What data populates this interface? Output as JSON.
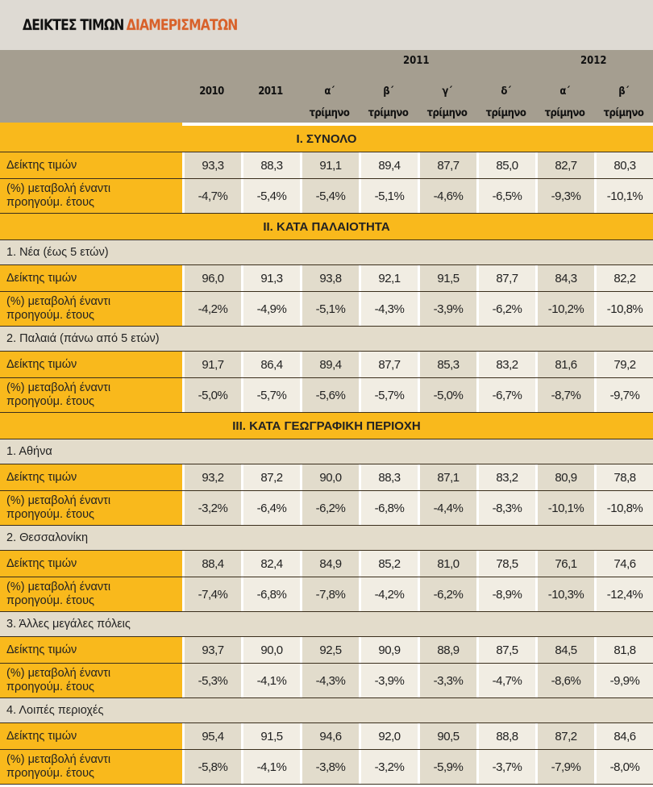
{
  "title": {
    "part1": "ΔΕΙΚΤΕΣ ΤΙΜΩΝ",
    "part2": "ΔΙΑΜΕΡΙΣΜΑΤΩΝ"
  },
  "colors": {
    "accent": "#f9b91c",
    "title_accent": "#d8612a",
    "header_bg": "#a59e90"
  },
  "header": {
    "groups": [
      "2011",
      "2012"
    ],
    "columns": [
      {
        "top": "2010",
        "bottom": ""
      },
      {
        "top": "2011",
        "bottom": ""
      },
      {
        "top": "α΄",
        "bottom": "τρίμηνο"
      },
      {
        "top": "β΄",
        "bottom": "τρίμηνο"
      },
      {
        "top": "γ΄",
        "bottom": "τρίμηνο"
      },
      {
        "top": "δ΄",
        "bottom": "τρίμηνο"
      },
      {
        "top": "α΄",
        "bottom": "τρίμηνο"
      },
      {
        "top": "β΄",
        "bottom": "τρίμηνο"
      }
    ]
  },
  "row_labels": {
    "index": "Δείκτης τιμών",
    "change1": "(%) μεταβολή έναντι",
    "change2": "προηγούμ. έτους"
  },
  "sections": [
    {
      "title": "I. ΣΥΝΟΛΟ",
      "groups": [
        {
          "name": "",
          "index": [
            "93,3",
            "88,3",
            "91,1",
            "89,4",
            "87,7",
            "85,0",
            "82,7",
            "80,3"
          ],
          "change": [
            "-4,7%",
            "-5,4%",
            "-5,4%",
            "-5,1%",
            "-4,6%",
            "-6,5%",
            "-9,3%",
            "-10,1%"
          ]
        }
      ]
    },
    {
      "title": "II. ΚΑΤΑ ΠΑΛΑΙΟΤΗΤΑ",
      "groups": [
        {
          "name": "1.  Νέα (έως 5 ετών)",
          "index": [
            "96,0",
            "91,3",
            "93,8",
            "92,1",
            "91,5",
            "87,7",
            "84,3",
            "82,2"
          ],
          "change": [
            "-4,2%",
            "-4,9%",
            "-5,1%",
            "-4,3%",
            "-3,9%",
            "-6,2%",
            "-10,2%",
            "-10,8%"
          ]
        },
        {
          "name": "2.  Παλαιά (πάνω από 5 ετών)",
          "index": [
            "91,7",
            "86,4",
            "89,4",
            "87,7",
            "85,3",
            "83,2",
            "81,6",
            "79,2"
          ],
          "change": [
            "-5,0%",
            "-5,7%",
            "-5,6%",
            "-5,7%",
            "-5,0%",
            "-6,7%",
            "-8,7%",
            "-9,7%"
          ]
        }
      ]
    },
    {
      "title": "III. ΚΑΤΑ ΓΕΩΓΡΑΦΙΚΗ ΠΕΡΙΟΧΗ",
      "groups": [
        {
          "name": "1.  Αθήνα",
          "index": [
            "93,2",
            "87,2",
            "90,0",
            "88,3",
            "87,1",
            "83,2",
            "80,9",
            "78,8"
          ],
          "change": [
            "-3,2%",
            "-6,4%",
            "-6,2%",
            "-6,8%",
            "-4,4%",
            "-8,3%",
            "-10,1%",
            "-10,8%"
          ]
        },
        {
          "name": "2.  Θεσσαλονίκη",
          "index": [
            "88,4",
            "82,4",
            "84,9",
            "85,2",
            "81,0",
            "78,5",
            "76,1",
            "74,6"
          ],
          "change": [
            "-7,4%",
            "-6,8%",
            "-7,8%",
            "-4,2%",
            "-6,2%",
            "-8,9%",
            "-10,3%",
            "-12,4%"
          ]
        },
        {
          "name": "3.  Άλλες μεγάλες πόλεις",
          "index": [
            "93,7",
            "90,0",
            "92,5",
            "90,9",
            "88,9",
            "87,5",
            "84,5",
            "81,8"
          ],
          "change": [
            "-5,3%",
            "-4,1%",
            "-4,3%",
            "-3,9%",
            "-3,3%",
            "-4,7%",
            "-8,6%",
            "-9,9%"
          ]
        },
        {
          "name": "4.  Λοιπές περιοχές",
          "index": [
            "95,4",
            "91,5",
            "94,6",
            "92,0",
            "90,5",
            "88,8",
            "87,2",
            "84,6"
          ],
          "change": [
            "-5,8%",
            "-4,1%",
            "-3,8%",
            "-3,2%",
            "-5,9%",
            "-3,7%",
            "-7,9%",
            "-8,0%"
          ]
        }
      ]
    }
  ]
}
